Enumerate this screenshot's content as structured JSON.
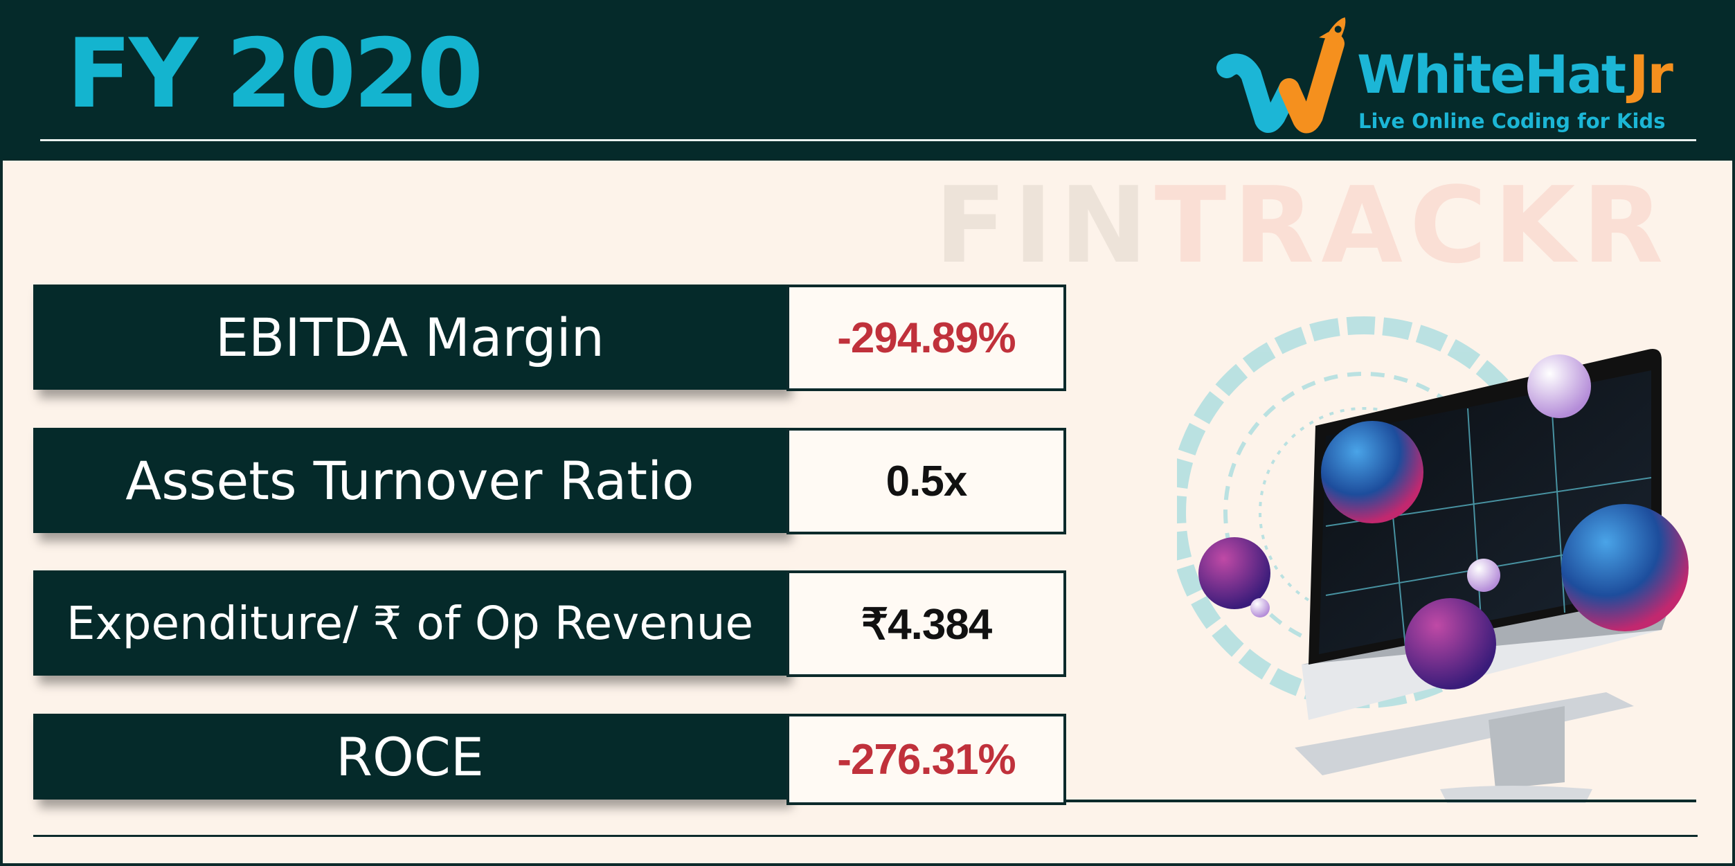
{
  "header": {
    "fiscal_year": "FY 2020",
    "logo": {
      "brand_main": "WhiteHat",
      "brand_suffix": "Jr",
      "tagline": "Live Online Coding for Kids"
    }
  },
  "watermark": {
    "part1": "FIN",
    "part2": "TRACKR"
  },
  "metrics": [
    {
      "label": "EBITDA Margin",
      "value": "-294.89%",
      "value_color": "#c0313b"
    },
    {
      "label": "Assets Turnover Ratio",
      "value": "0.5x",
      "value_color": "#111111"
    },
    {
      "label": "Expenditure/ ₹ of Op Revenue",
      "value": "₹4.384",
      "value_color": "#111111"
    },
    {
      "label": "ROCE",
      "value": "-276.31%",
      "value_color": "#c0313b"
    }
  ],
  "colors": {
    "header_bg": "#052a2a",
    "accent": "#14b4cf",
    "brand_orange": "#f5901e",
    "page_bg": "#fdf3ea",
    "negative": "#c0313b"
  },
  "illustration": {
    "icon": "monitor-with-spheres-illustration"
  }
}
